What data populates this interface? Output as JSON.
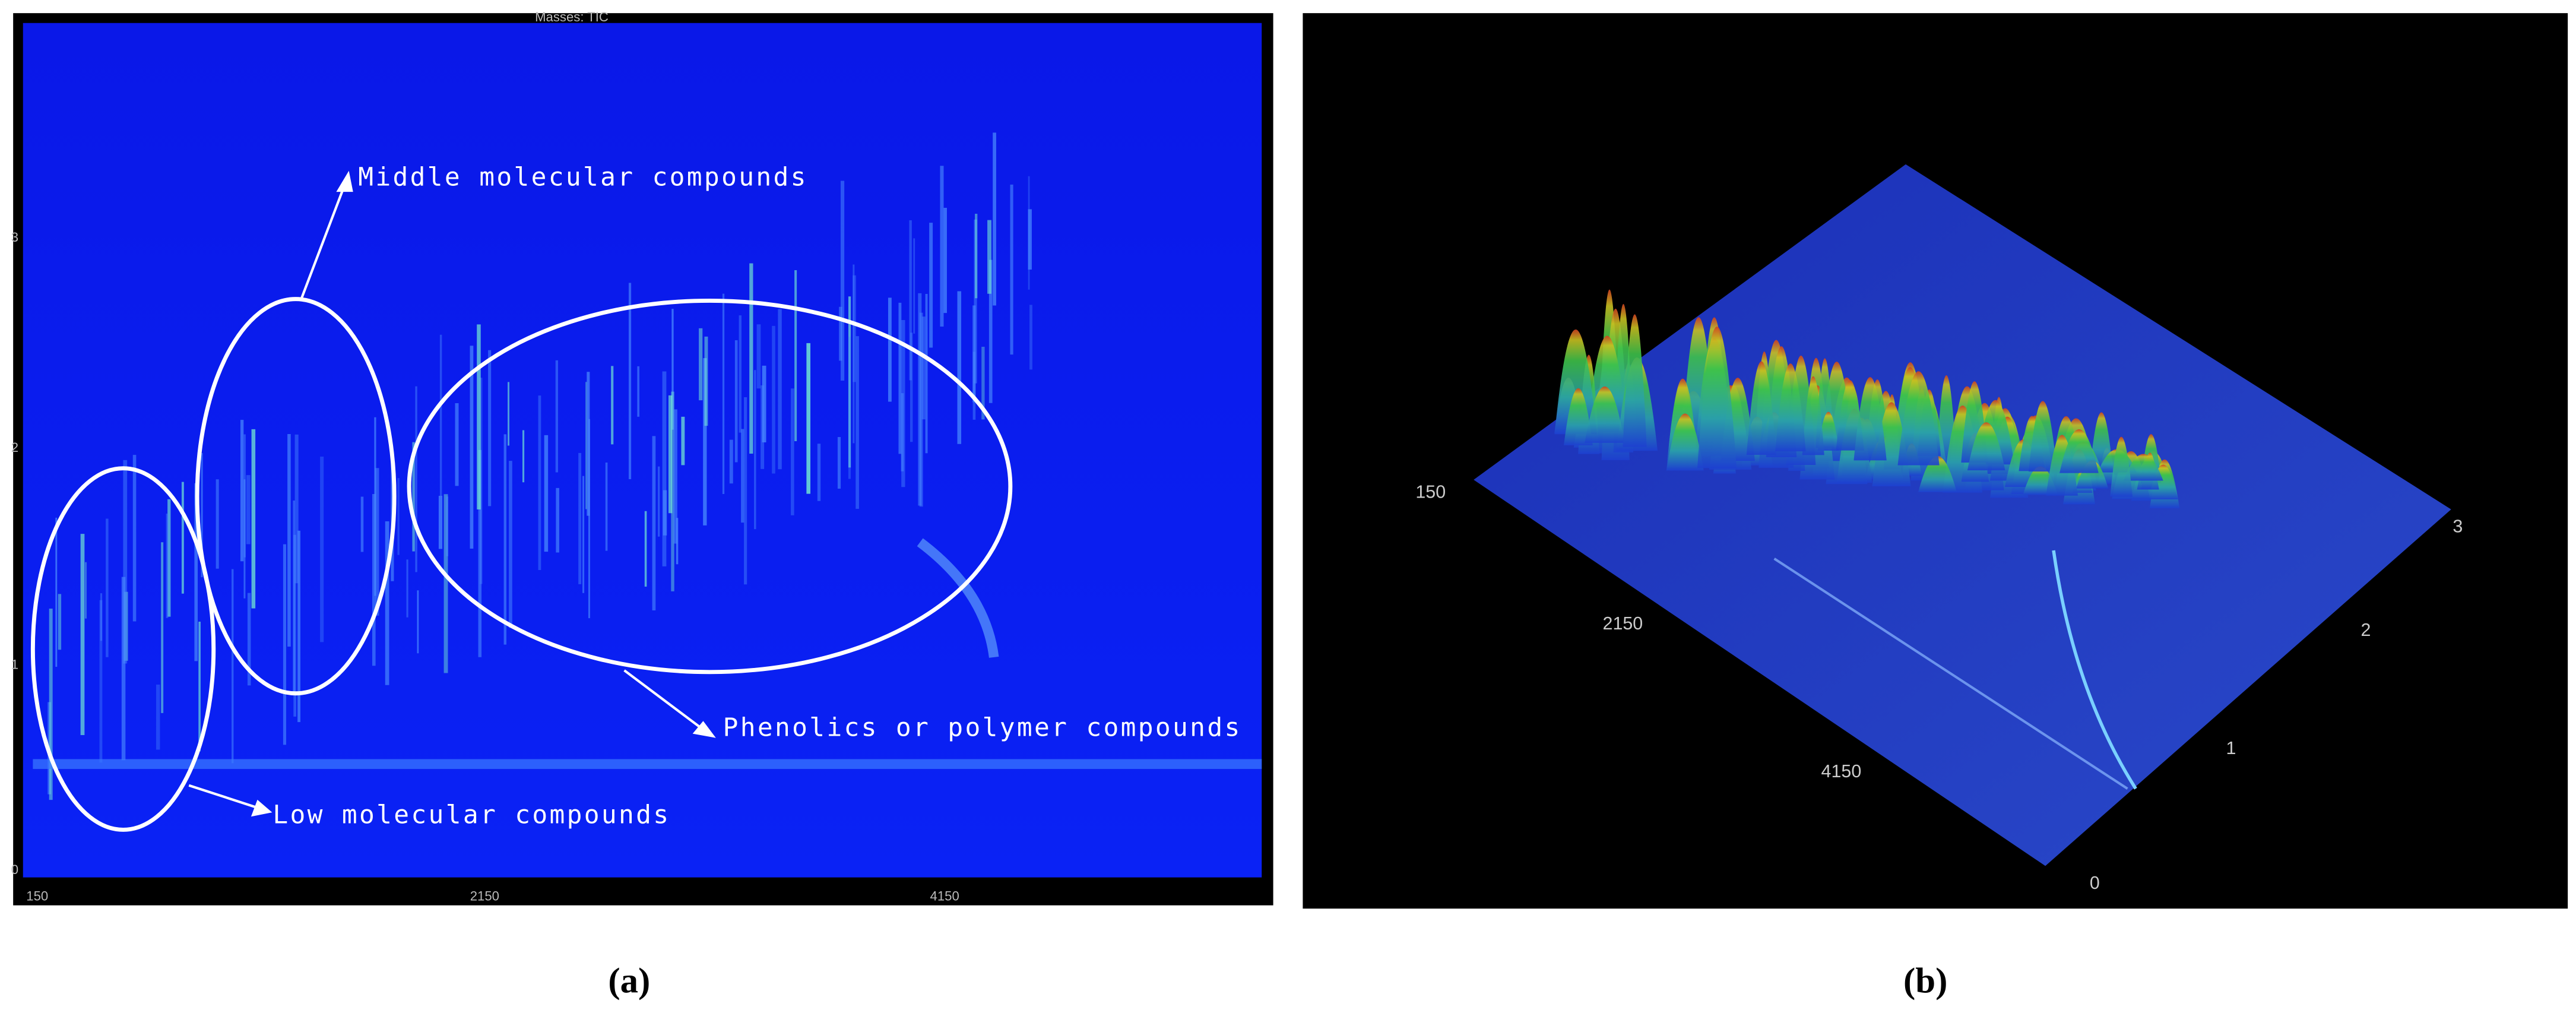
{
  "panel_a": {
    "title": "Masses: TIC",
    "x_ticks": [
      150,
      2150,
      4150
    ],
    "y_ticks": [
      0,
      1,
      2,
      3
    ],
    "annotations": [
      "Middle molecular compounds",
      "Phenolics or polymer compounds",
      "Low molecular compounds"
    ],
    "label": "(a)"
  },
  "panel_b": {
    "x_ticks": [
      150,
      2150,
      4150
    ],
    "y_ticks": [
      0,
      1,
      2,
      3
    ],
    "label": "(b)"
  }
}
